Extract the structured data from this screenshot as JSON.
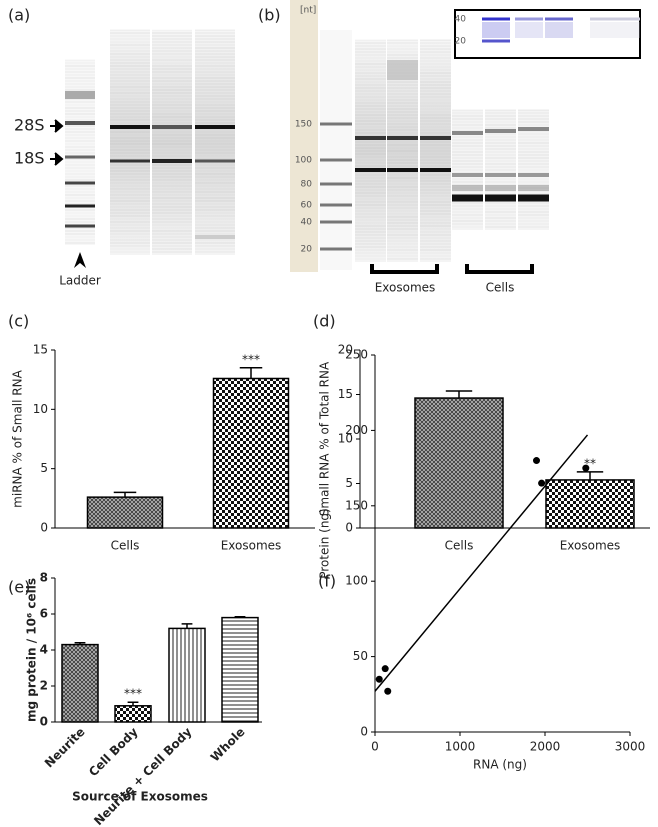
{
  "gel_a": {
    "label": "(a)",
    "band_28s": "28S",
    "band_18s": "18S",
    "ladder": "Ladder"
  },
  "gel_b": {
    "label": "(b)",
    "unit": "[nt]",
    "ladder_ticks": [
      150,
      100,
      80,
      60,
      40,
      20
    ],
    "inset_ticks": [
      40,
      20
    ],
    "group_exosomes": "Exosomes",
    "group_cells": "Cells"
  },
  "chart_data": [
    {
      "type": "bar",
      "label": "(c)",
      "ylabel": "miRNA % of Small RNA",
      "categories": [
        "Cells",
        "Exosomes"
      ],
      "values": [
        2.6,
        12.6
      ],
      "errors": [
        0.4,
        0.9
      ],
      "significance": [
        null,
        "***"
      ],
      "patterns": [
        "crosshatch",
        "checker"
      ],
      "ylim": [
        0,
        15
      ],
      "yticks": [
        0,
        5,
        10,
        15
      ]
    },
    {
      "type": "bar",
      "label": "(d)",
      "ylabel": "Small RNA % of Total RNA",
      "categories": [
        "Cells",
        "Exosomes"
      ],
      "values": [
        14.6,
        5.4
      ],
      "errors": [
        0.8,
        0.9
      ],
      "significance": [
        null,
        "**"
      ],
      "patterns": [
        "crosshatch",
        "checker"
      ],
      "ylim": [
        0,
        20
      ],
      "yticks": [
        0,
        5,
        10,
        15,
        20
      ]
    },
    {
      "type": "bar",
      "label": "(e)",
      "ylabel": "mg protein / 10⁶ cells",
      "xlabel": "Source of  Exosomes",
      "categories": [
        "Neurite",
        "Cell Body",
        "Neurite + Cell Body",
        "Whole"
      ],
      "values": [
        4.3,
        0.9,
        5.2,
        5.8
      ],
      "errors": [
        0.1,
        0.2,
        0.25,
        0.05
      ],
      "significance": [
        null,
        "***",
        null,
        null
      ],
      "patterns": [
        "crosshatch",
        "checker",
        "vlines",
        "hlines"
      ],
      "ylim": [
        0,
        8
      ],
      "yticks": [
        0,
        2,
        4,
        6,
        8
      ]
    },
    {
      "type": "scatter",
      "label": "(f)",
      "xlabel": "RNA (ng)",
      "ylabel": "Protein (ng)",
      "x": [
        50,
        120,
        150,
        1900,
        1960,
        2480
      ],
      "y": [
        35,
        42,
        27,
        180,
        165,
        175
      ],
      "trendline": {
        "x": [
          0,
          2500
        ],
        "y": [
          27,
          197
        ]
      },
      "xlim": [
        0,
        3000
      ],
      "xticks": [
        0,
        1000,
        2000,
        3000
      ],
      "ylim": [
        0,
        250
      ],
      "yticks": [
        0,
        50,
        100,
        150,
        200,
        250
      ]
    }
  ]
}
